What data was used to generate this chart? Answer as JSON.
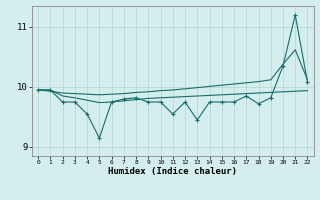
{
  "xlabel": "Humidex (Indice chaleur)",
  "background_color": "#d4eeee",
  "line_color": "#1a6b6b",
  "grid_color": "#b8d8d8",
  "x": [
    0,
    1,
    2,
    3,
    4,
    5,
    6,
    7,
    8,
    9,
    10,
    11,
    12,
    13,
    14,
    15,
    16,
    17,
    18,
    19,
    20,
    21,
    22
  ],
  "y_main": [
    9.95,
    9.95,
    9.75,
    9.75,
    9.55,
    9.15,
    9.75,
    9.8,
    9.82,
    9.75,
    9.75,
    9.55,
    9.75,
    9.45,
    9.75,
    9.75,
    9.75,
    9.85,
    9.72,
    9.82,
    10.35,
    11.2,
    10.08
  ],
  "y_upper": [
    9.95,
    9.93,
    9.9,
    9.89,
    9.88,
    9.87,
    9.88,
    9.89,
    9.91,
    9.92,
    9.94,
    9.95,
    9.97,
    9.99,
    10.01,
    10.03,
    10.05,
    10.07,
    10.09,
    10.12,
    10.38,
    10.62,
    10.12
  ],
  "y_lower": [
    9.95,
    9.95,
    9.85,
    9.82,
    9.78,
    9.74,
    9.75,
    9.77,
    9.79,
    9.81,
    9.82,
    9.83,
    9.84,
    9.85,
    9.86,
    9.87,
    9.88,
    9.89,
    9.9,
    9.91,
    9.92,
    9.93,
    9.94
  ],
  "ylim": [
    8.85,
    11.35
  ],
  "yticks": [
    9,
    10,
    11
  ],
  "xticks": [
    0,
    1,
    2,
    3,
    4,
    5,
    6,
    7,
    8,
    9,
    10,
    11,
    12,
    13,
    14,
    15,
    16,
    17,
    18,
    19,
    20,
    21,
    22
  ]
}
